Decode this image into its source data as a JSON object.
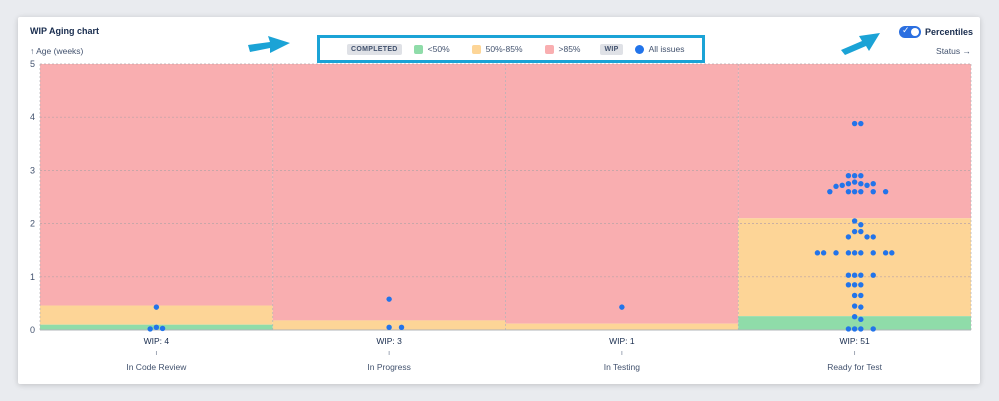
{
  "header": {
    "title": "WIP Aging chart",
    "y_axis_label": "↑ Age (weeks)",
    "x_axis_label": "Status →",
    "toggle_label": "Percentiles",
    "toggle_on": true
  },
  "legend": {
    "completed_tag": "COMPLETED",
    "wip_tag": "WIP",
    "items": [
      {
        "label": "<50%",
        "color": "#8fdca9"
      },
      {
        "label": "50%-85%",
        "color": "#fdd597"
      },
      {
        "label": ">85%",
        "color": "#f9aeb0"
      }
    ],
    "wip_item": {
      "label": "All issues",
      "color": "#2274ea"
    }
  },
  "chart_data": {
    "type": "scatter",
    "ylim": [
      0,
      5
    ],
    "y_ticks": [
      "0",
      "1",
      "2",
      "3",
      "4",
      "5"
    ],
    "grid": true,
    "colors": {
      "p50": "#8fdca9",
      "p85": "#fdd597",
      "above": "#f9aeb0",
      "point": "#2274ea"
    },
    "columns": [
      {
        "status": "In Code Review",
        "wip_label": "WIP: 4",
        "p50": 0.1,
        "p85": 0.46,
        "points": [
          0.43,
          0.05,
          0.03,
          0.02
        ]
      },
      {
        "status": "In Progress",
        "wip_label": "WIP: 3",
        "p50": 0.0,
        "p85": 0.18,
        "points": [
          0.58,
          0.05,
          0.05
        ]
      },
      {
        "status": "In Testing",
        "wip_label": "WIP: 1",
        "p50": 0.0,
        "p85": 0.12,
        "points": [
          0.43
        ]
      },
      {
        "status": "Ready for Test",
        "wip_label": "WIP: 51",
        "p50": 0.26,
        "p85": 2.1,
        "points": [
          3.88,
          3.88,
          2.9,
          2.9,
          2.9,
          2.78,
          2.75,
          2.75,
          2.75,
          2.72,
          2.72,
          2.7,
          2.6,
          2.6,
          2.6,
          2.6,
          2.6,
          2.6,
          2.05,
          1.98,
          1.85,
          1.85,
          1.75,
          1.75,
          1.75,
          1.45,
          1.45,
          1.45,
          1.45,
          1.45,
          1.45,
          1.45,
          1.45,
          1.45,
          1.03,
          1.03,
          1.03,
          1.03,
          0.85,
          0.85,
          0.85,
          0.65,
          0.65,
          0.45,
          0.43,
          0.25,
          0.2,
          0.02,
          0.02,
          0.02,
          0.02
        ]
      }
    ]
  }
}
